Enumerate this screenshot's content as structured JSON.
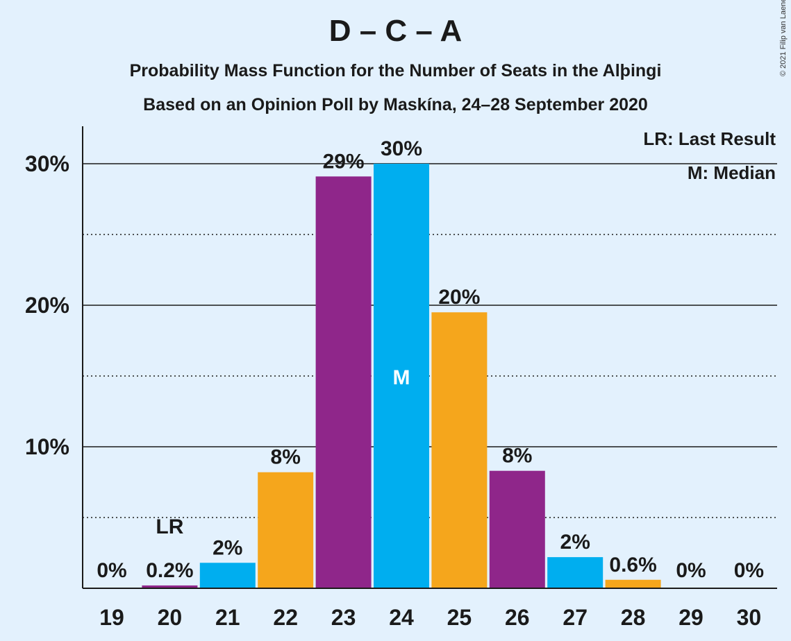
{
  "title": "D – C – A",
  "subtitle1": "Probability Mass Function for the Number of Seats in the Alþingi",
  "subtitle2": "Based on an Opinion Poll by Maskína, 24–28 September 2020",
  "copyright": "© 2021 Filip van Laenen",
  "legend": {
    "last_result": "LR: Last Result",
    "median": "M: Median"
  },
  "colors": {
    "background": "#e3f1fd",
    "purple": "#8f268a",
    "blue": "#00aeef",
    "orange": "#f5a61c"
  },
  "chart_data": {
    "type": "bar",
    "categories": [
      "19",
      "20",
      "21",
      "22",
      "23",
      "24",
      "25",
      "26",
      "27",
      "28",
      "29",
      "30"
    ],
    "values": [
      0,
      0.2,
      1.8,
      8.2,
      29.1,
      30.0,
      19.5,
      8.3,
      2.2,
      0.6,
      0,
      0
    ],
    "data_labels": [
      "0%",
      "0.2%",
      "2%",
      "8%",
      "29%",
      "30%",
      "20%",
      "8%",
      "2%",
      "0.6%",
      "0%",
      "0%"
    ],
    "bar_colors": [
      "purple",
      "purple",
      "blue",
      "orange",
      "purple",
      "blue",
      "orange",
      "purple",
      "blue",
      "orange",
      "purple",
      "blue"
    ],
    "y_ticks": [
      10,
      20,
      30
    ],
    "y_tick_labels": [
      "10%",
      "20%",
      "30%"
    ],
    "ylim": [
      0,
      32
    ],
    "gridlines_dotted": [
      5,
      15,
      25
    ],
    "last_result_seat": "20",
    "last_result_label": "LR",
    "median_seat": "24",
    "median_label": "M",
    "legend_position": "top-right"
  }
}
